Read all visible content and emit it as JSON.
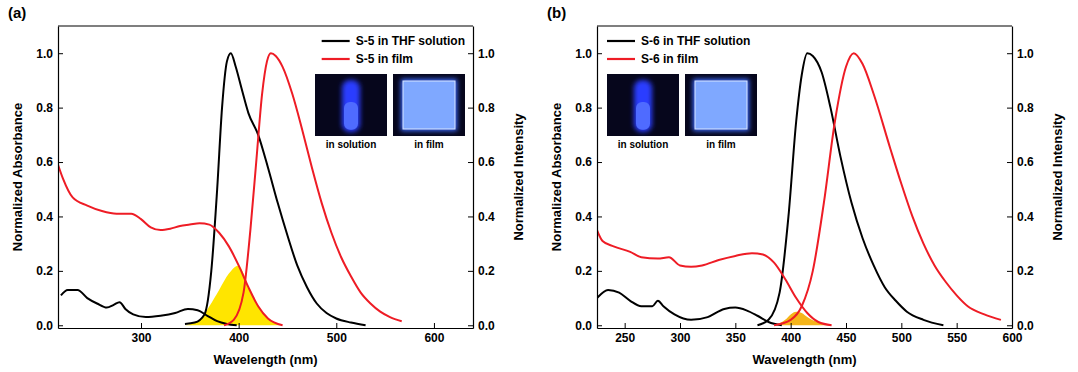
{
  "chart_data": [
    {
      "type": "line",
      "title": "(a)",
      "xlabel": "Wavelength (nm)",
      "ylabel": "Normalized Absorbance",
      "y2label": "Normalized Intensity",
      "xlim": [
        215,
        640
      ],
      "xticks": [
        300,
        400,
        500,
        600
      ],
      "ylim": [
        -0.01,
        1.1
      ],
      "yticks": [
        {
          "value": 0,
          "label": "0.0"
        },
        {
          "value": 0.2,
          "label": "0.2"
        },
        {
          "value": 0.4,
          "label": "0.4"
        },
        {
          "value": 0.6,
          "label": "0.6"
        },
        {
          "value": 0.8,
          "label": "0.8"
        },
        {
          "value": 1,
          "label": "1.0"
        }
      ],
      "y2lim": [
        -0.01,
        1.1
      ],
      "y2ticks": [
        {
          "value": 0,
          "label": "0.0"
        },
        {
          "value": 0.2,
          "label": "0.2"
        },
        {
          "value": 0.4,
          "label": "0.4"
        },
        {
          "value": 0.6,
          "label": "0.6"
        },
        {
          "value": 0.8,
          "label": "0.8"
        },
        {
          "value": 1,
          "label": "1.0"
        }
      ],
      "legend": "upper right",
      "annotations": [
        "in solution",
        "in film"
      ],
      "series": [
        {
          "color": "#000000",
          "x": [
            218,
            225,
            235,
            245,
            255,
            265,
            272,
            278,
            284,
            292,
            305,
            320,
            335,
            348,
            358,
            368,
            378,
            388,
            398
          ],
          "values": [
            0.11,
            0.13,
            0.13,
            0.1,
            0.08,
            0.065,
            0.075,
            0.085,
            0.06,
            0.04,
            0.03,
            0.035,
            0.045,
            0.06,
            0.055,
            0.035,
            0.015,
            0.005,
            0.0
          ]
        },
        {
          "name": "S-5 in THF solution",
          "color": "#000000",
          "axis": "y2",
          "x": [
            345,
            355,
            365,
            372,
            378,
            383,
            388,
            392,
            397,
            403,
            410,
            420,
            430,
            440,
            450,
            460,
            470,
            480,
            490,
            500,
            515,
            530
          ],
          "values": [
            0.005,
            0.01,
            0.04,
            0.2,
            0.5,
            0.8,
            0.97,
            1.0,
            0.95,
            0.87,
            0.78,
            0.7,
            0.58,
            0.45,
            0.33,
            0.22,
            0.14,
            0.08,
            0.045,
            0.025,
            0.01,
            0.0
          ]
        },
        {
          "color": "#ee1c25",
          "x": [
            215,
            220,
            230,
            245,
            260,
            275,
            290,
            300,
            310,
            320,
            330,
            340,
            350,
            360,
            370,
            380,
            390,
            400,
            410,
            420,
            430,
            445
          ],
          "values": [
            0.59,
            0.54,
            0.47,
            0.44,
            0.42,
            0.41,
            0.41,
            0.39,
            0.36,
            0.35,
            0.355,
            0.365,
            0.37,
            0.375,
            0.37,
            0.34,
            0.29,
            0.22,
            0.14,
            0.07,
            0.025,
            0.0
          ]
        },
        {
          "name": "S-5 in film",
          "color": "#ee1c25",
          "axis": "y2",
          "x": [
            385,
            395,
            405,
            412,
            418,
            424,
            429,
            433,
            438,
            445,
            455,
            465,
            475,
            485,
            495,
            505,
            515,
            525,
            535,
            545,
            555,
            567
          ],
          "values": [
            0.0,
            0.02,
            0.12,
            0.35,
            0.6,
            0.85,
            0.97,
            1.0,
            0.99,
            0.95,
            0.85,
            0.72,
            0.58,
            0.45,
            0.34,
            0.25,
            0.18,
            0.12,
            0.08,
            0.05,
            0.03,
            0.015
          ]
        },
        {
          "type": "area",
          "color": "#ffe500",
          "x": [
            345,
            360,
            370,
            380,
            390,
            400,
            405,
            410,
            420,
            430,
            445
          ],
          "values": [
            0.0,
            0.02,
            0.07,
            0.13,
            0.19,
            0.22,
            0.19,
            0.14,
            0.07,
            0.025,
            0.0
          ]
        }
      ]
    },
    {
      "type": "line",
      "title": "(b)",
      "xlabel": "Wavelength (nm)",
      "ylabel": "Normalized Absorbance",
      "y2label": "Normalized Intensity",
      "xlim": [
        225,
        600
      ],
      "xticks": [
        250,
        300,
        350,
        400,
        450,
        500,
        550,
        600
      ],
      "ylim": [
        -0.01,
        1.1
      ],
      "yticks": [
        {
          "value": 0,
          "label": "0.0"
        },
        {
          "value": 0.2,
          "label": "0.2"
        },
        {
          "value": 0.4,
          "label": "0.4"
        },
        {
          "value": 0.6,
          "label": "0.6"
        },
        {
          "value": 0.8,
          "label": "0.8"
        },
        {
          "value": 1,
          "label": "1.0"
        }
      ],
      "y2lim": [
        -0.01,
        1.1
      ],
      "y2ticks": [
        {
          "value": 0,
          "label": "0.0"
        },
        {
          "value": 0.2,
          "label": "0.2"
        },
        {
          "value": 0.4,
          "label": "0.4"
        },
        {
          "value": 0.6,
          "label": "0.6"
        },
        {
          "value": 0.8,
          "label": "0.8"
        },
        {
          "value": 1,
          "label": "1.0"
        }
      ],
      "legend": "upper left",
      "annotations": [
        "in solution",
        "in film"
      ],
      "series": [
        {
          "color": "#000000",
          "x": [
            225,
            235,
            245,
            255,
            265,
            275,
            280,
            285,
            295,
            310,
            325,
            340,
            350,
            360,
            370,
            380,
            392
          ],
          "values": [
            0.1,
            0.13,
            0.12,
            0.09,
            0.07,
            0.07,
            0.09,
            0.07,
            0.04,
            0.02,
            0.03,
            0.06,
            0.065,
            0.055,
            0.035,
            0.012,
            0.0
          ]
        },
        {
          "name": "S-6 in THF solution",
          "color": "#000000",
          "axis": "y2",
          "x": [
            370,
            380,
            390,
            398,
            405,
            410,
            415,
            420,
            428,
            436,
            445,
            455,
            465,
            475,
            485,
            495,
            505,
            520,
            538
          ],
          "values": [
            0.0,
            0.02,
            0.12,
            0.4,
            0.75,
            0.92,
            1.0,
            0.99,
            0.93,
            0.8,
            0.62,
            0.45,
            0.32,
            0.22,
            0.14,
            0.09,
            0.05,
            0.02,
            0.0
          ]
        },
        {
          "color": "#ee1c25",
          "x": [
            225,
            230,
            240,
            255,
            265,
            280,
            290,
            300,
            310,
            320,
            335,
            350,
            365,
            375,
            385,
            395,
            405,
            415,
            425,
            437
          ],
          "values": [
            0.35,
            0.31,
            0.29,
            0.27,
            0.25,
            0.245,
            0.25,
            0.22,
            0.215,
            0.22,
            0.24,
            0.255,
            0.265,
            0.26,
            0.23,
            0.17,
            0.1,
            0.045,
            0.012,
            0.0
          ]
        },
        {
          "name": "S-6 in film",
          "color": "#ee1c25",
          "axis": "y2",
          "x": [
            385,
            400,
            410,
            420,
            430,
            440,
            450,
            457,
            465,
            475,
            490,
            500,
            510,
            520,
            530,
            540,
            550,
            560,
            575,
            590
          ],
          "values": [
            0.0,
            0.02,
            0.07,
            0.2,
            0.45,
            0.75,
            0.95,
            1.0,
            0.96,
            0.85,
            0.65,
            0.52,
            0.4,
            0.3,
            0.22,
            0.16,
            0.11,
            0.07,
            0.04,
            0.02
          ]
        },
        {
          "type": "area",
          "color": "#f5b51a",
          "x": [
            385,
            395,
            400,
            405,
            410,
            415,
            425,
            437
          ],
          "values": [
            0.0,
            0.02,
            0.04,
            0.05,
            0.045,
            0.03,
            0.01,
            0.0
          ]
        }
      ]
    }
  ]
}
